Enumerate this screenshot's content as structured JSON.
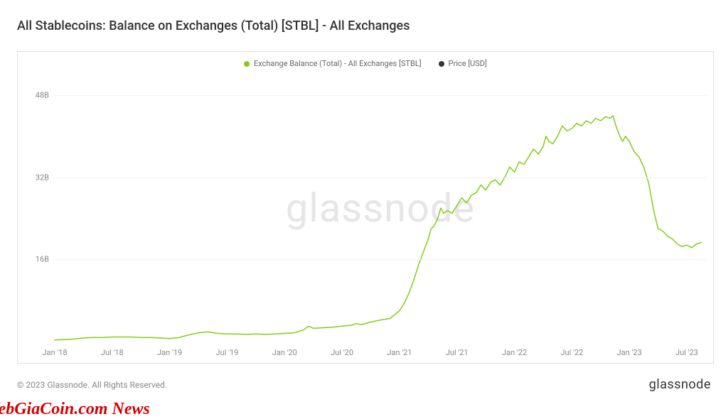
{
  "title": "All Stablecoins: Balance on Exchanges (Total) [STBL] - All Exchanges",
  "legend": {
    "series1": {
      "label": "Exchange Balance (Total) - All Exchanges [STBL]",
      "color": "#85cc16"
    },
    "series2": {
      "label": "Price [USD]",
      "color": "#333333"
    }
  },
  "watermark": "glassnode",
  "footer": {
    "copyright": "© 2023 Glassnode. All Rights Reserved.",
    "brand": "glassnode"
  },
  "overlay": "WebGiaCoin.com News",
  "chart": {
    "type": "line",
    "background_color": "#ffffff",
    "grid_color": "#f0f0f0",
    "border_color": "#e0e0e0",
    "line_color": "#85cc16",
    "line_width": 1.5,
    "ylim": [
      0,
      52
    ],
    "yticks": [
      {
        "v": 16,
        "label": "16B"
      },
      {
        "v": 32,
        "label": "32B"
      },
      {
        "v": 48,
        "label": "48B"
      }
    ],
    "xlim": [
      0,
      68
    ],
    "xticks": [
      {
        "v": 0,
        "label": "Jan '18"
      },
      {
        "v": 6,
        "label": "Jul '18"
      },
      {
        "v": 12,
        "label": "Jan '19"
      },
      {
        "v": 18,
        "label": "Jul '19"
      },
      {
        "v": 24,
        "label": "Jan '20"
      },
      {
        "v": 30,
        "label": "Jul '20"
      },
      {
        "v": 36,
        "label": "Jan '21"
      },
      {
        "v": 42,
        "label": "Jul '21"
      },
      {
        "v": 48,
        "label": "Jan '22"
      },
      {
        "v": 54,
        "label": "Jul '22"
      },
      {
        "v": 60,
        "label": "Jan '23"
      },
      {
        "v": 66,
        "label": "Jul '23"
      }
    ],
    "series": [
      {
        "x": 0,
        "y": 0.3
      },
      {
        "x": 1,
        "y": 0.4
      },
      {
        "x": 2,
        "y": 0.5
      },
      {
        "x": 3,
        "y": 0.7
      },
      {
        "x": 4,
        "y": 0.8
      },
      {
        "x": 5,
        "y": 0.8
      },
      {
        "x": 6,
        "y": 0.9
      },
      {
        "x": 7,
        "y": 0.9
      },
      {
        "x": 8,
        "y": 0.9
      },
      {
        "x": 9,
        "y": 0.8
      },
      {
        "x": 10,
        "y": 0.8
      },
      {
        "x": 11,
        "y": 0.7
      },
      {
        "x": 12,
        "y": 0.6
      },
      {
        "x": 13,
        "y": 0.8
      },
      {
        "x": 14,
        "y": 1.3
      },
      {
        "x": 15,
        "y": 1.7
      },
      {
        "x": 16,
        "y": 1.9
      },
      {
        "x": 17,
        "y": 1.6
      },
      {
        "x": 18,
        "y": 1.5
      },
      {
        "x": 19,
        "y": 1.5
      },
      {
        "x": 20,
        "y": 1.4
      },
      {
        "x": 21,
        "y": 1.5
      },
      {
        "x": 22,
        "y": 1.4
      },
      {
        "x": 23,
        "y": 1.5
      },
      {
        "x": 24,
        "y": 1.6
      },
      {
        "x": 25,
        "y": 1.7
      },
      {
        "x": 26,
        "y": 2.3
      },
      {
        "x": 26.5,
        "y": 3.0
      },
      {
        "x": 27,
        "y": 2.6
      },
      {
        "x": 28,
        "y": 2.7
      },
      {
        "x": 29,
        "y": 2.8
      },
      {
        "x": 30,
        "y": 3.0
      },
      {
        "x": 31,
        "y": 3.2
      },
      {
        "x": 31.5,
        "y": 3.5
      },
      {
        "x": 32,
        "y": 3.3
      },
      {
        "x": 33,
        "y": 3.8
      },
      {
        "x": 34,
        "y": 4.2
      },
      {
        "x": 35,
        "y": 4.5
      },
      {
        "x": 36,
        "y": 6.0
      },
      {
        "x": 36.5,
        "y": 7.5
      },
      {
        "x": 37,
        "y": 9.5
      },
      {
        "x": 37.5,
        "y": 12.0
      },
      {
        "x": 38,
        "y": 15.0
      },
      {
        "x": 38.5,
        "y": 17.5
      },
      {
        "x": 39,
        "y": 20.0
      },
      {
        "x": 39.3,
        "y": 22.0
      },
      {
        "x": 39.6,
        "y": 22.5
      },
      {
        "x": 40,
        "y": 24.0
      },
      {
        "x": 40.3,
        "y": 26.0
      },
      {
        "x": 40.6,
        "y": 25.0
      },
      {
        "x": 41,
        "y": 25.5
      },
      {
        "x": 41.5,
        "y": 25.0
      },
      {
        "x": 42,
        "y": 26.5
      },
      {
        "x": 42.5,
        "y": 28.0
      },
      {
        "x": 43,
        "y": 27.0
      },
      {
        "x": 43.5,
        "y": 28.5
      },
      {
        "x": 44,
        "y": 29.0
      },
      {
        "x": 44.5,
        "y": 30.5
      },
      {
        "x": 45,
        "y": 29.5
      },
      {
        "x": 45.5,
        "y": 31.0
      },
      {
        "x": 46,
        "y": 31.5
      },
      {
        "x": 46.5,
        "y": 30.5
      },
      {
        "x": 47,
        "y": 32.0
      },
      {
        "x": 47.5,
        "y": 34.0
      },
      {
        "x": 48,
        "y": 33.0
      },
      {
        "x": 48.5,
        "y": 35.0
      },
      {
        "x": 49,
        "y": 34.5
      },
      {
        "x": 49.5,
        "y": 36.0
      },
      {
        "x": 50,
        "y": 37.5
      },
      {
        "x": 50.5,
        "y": 36.5
      },
      {
        "x": 51,
        "y": 38.0
      },
      {
        "x": 51.3,
        "y": 40.0
      },
      {
        "x": 51.6,
        "y": 39.0
      },
      {
        "x": 52,
        "y": 38.5
      },
      {
        "x": 52.5,
        "y": 40.0
      },
      {
        "x": 53,
        "y": 42.0
      },
      {
        "x": 53.5,
        "y": 41.0
      },
      {
        "x": 54,
        "y": 41.5
      },
      {
        "x": 54.5,
        "y": 42.5
      },
      {
        "x": 55,
        "y": 42.0
      },
      {
        "x": 55.5,
        "y": 43.0
      },
      {
        "x": 56,
        "y": 42.5
      },
      {
        "x": 56.5,
        "y": 43.5
      },
      {
        "x": 57,
        "y": 43.0
      },
      {
        "x": 57.5,
        "y": 43.8
      },
      {
        "x": 58,
        "y": 43.5
      },
      {
        "x": 58.3,
        "y": 44.0
      },
      {
        "x": 58.6,
        "y": 42.0
      },
      {
        "x": 59,
        "y": 40.0
      },
      {
        "x": 59.3,
        "y": 39.0
      },
      {
        "x": 59.6,
        "y": 40.0
      },
      {
        "x": 60,
        "y": 39.0
      },
      {
        "x": 60.5,
        "y": 37.0
      },
      {
        "x": 61,
        "y": 36.0
      },
      {
        "x": 61.5,
        "y": 34.0
      },
      {
        "x": 62,
        "y": 31.0
      },
      {
        "x": 62.3,
        "y": 28.0
      },
      {
        "x": 62.6,
        "y": 25.0
      },
      {
        "x": 63,
        "y": 22.0
      },
      {
        "x": 63.5,
        "y": 21.5
      },
      {
        "x": 64,
        "y": 20.5
      },
      {
        "x": 64.5,
        "y": 20.0
      },
      {
        "x": 65,
        "y": 19.0
      },
      {
        "x": 65.5,
        "y": 18.5
      },
      {
        "x": 66,
        "y": 18.8
      },
      {
        "x": 66.5,
        "y": 18.3
      },
      {
        "x": 67,
        "y": 19.0
      },
      {
        "x": 67.5,
        "y": 19.3
      }
    ]
  }
}
